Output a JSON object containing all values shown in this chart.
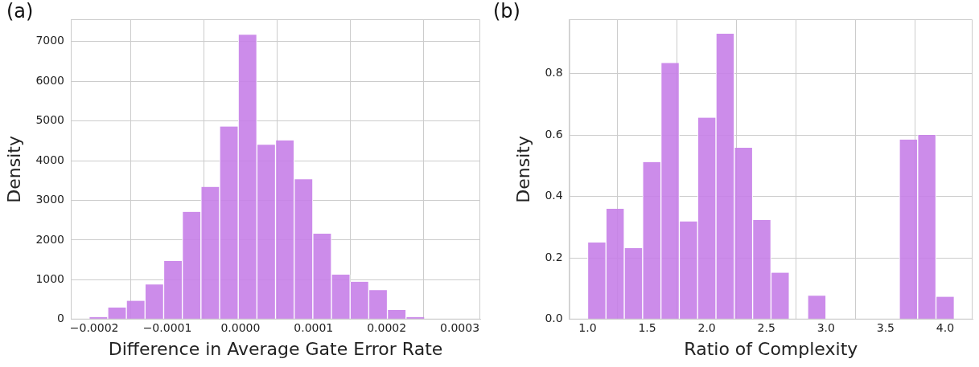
{
  "chart_data": [
    {
      "type": "histogram",
      "title": "(a)",
      "xlabel": "Difference in Average Gate Error Rate",
      "ylabel": "Density",
      "bins": [
        -0.000207,
        -0.0001815,
        -0.000156,
        -0.0001305,
        -0.000105,
        -7.95e-05,
        -5.4e-05,
        -2.85e-05,
        -3e-06,
        2.25e-05,
        4.8e-05,
        7.35e-05,
        9.9e-05,
        0.0001245,
        0.00015,
        0.0001755,
        0.000201,
        0.0002265,
        0.000252,
        0.0002775,
        0.000303
      ],
      "values": [
        60,
        300,
        470,
        880,
        1470,
        2710,
        3340,
        4860,
        7170,
        4400,
        4510,
        3530,
        2160,
        1130,
        950,
        740,
        240,
        60,
        0,
        0
      ],
      "color": "#c77fe8",
      "xlim": [
        -0.000232,
        0.000328
      ],
      "xticks": [
        {
          "value": -0.0002,
          "label": "−0.0002"
        },
        {
          "value": -0.0001,
          "label": "−0.0001"
        },
        {
          "value": 0,
          "label": "0.0000"
        },
        {
          "value": 0.0001,
          "label": "0.0001"
        },
        {
          "value": 0.0002,
          "label": "0.0002"
        },
        {
          "value": 0.0003,
          "label": "0.0003"
        }
      ],
      "ylim": [
        0,
        7560
      ],
      "yticks": [
        0,
        1000,
        2000,
        3000,
        4000,
        5000,
        6000,
        7000
      ],
      "grid": true
    },
    {
      "type": "histogram",
      "title": "(b)",
      "xlabel": "Ratio of Complexity",
      "ylabel": "Density",
      "bins": [
        1.0,
        1.1538,
        1.3077,
        1.4615,
        1.6154,
        1.7692,
        1.9231,
        2.0769,
        2.2308,
        2.3846,
        2.5385,
        2.6923,
        2.8462,
        3.0,
        3.1538,
        3.3077,
        3.4615,
        3.6154,
        3.7692,
        3.9231,
        4.0769
      ],
      "values": [
        0.25,
        0.36,
        0.232,
        0.512,
        0.834,
        0.319,
        0.656,
        0.929,
        0.558,
        0.323,
        0.152,
        0,
        0.077,
        0,
        0,
        0,
        0,
        0.585,
        0.6,
        0.074
      ],
      "color": "#c77fe8",
      "xlim": [
        0.846,
        4.23
      ],
      "xticks": [
        {
          "value": 1,
          "label": "1.0"
        },
        {
          "value": 1.5,
          "label": "1.5"
        },
        {
          "value": 2,
          "label": "2.0"
        },
        {
          "value": 2.5,
          "label": "2.5"
        },
        {
          "value": 3,
          "label": "3.0"
        },
        {
          "value": 3.5,
          "label": "3.5"
        },
        {
          "value": 4,
          "label": "4.0"
        }
      ],
      "ylim": [
        0,
        0.976
      ],
      "yticks": [
        {
          "value": 0,
          "label": "0.0"
        },
        {
          "value": 0.2,
          "label": "0.2"
        },
        {
          "value": 0.4,
          "label": "0.4"
        },
        {
          "value": 0.6,
          "label": "0.6"
        },
        {
          "value": 0.8,
          "label": "0.8"
        }
      ],
      "grid": true
    }
  ]
}
